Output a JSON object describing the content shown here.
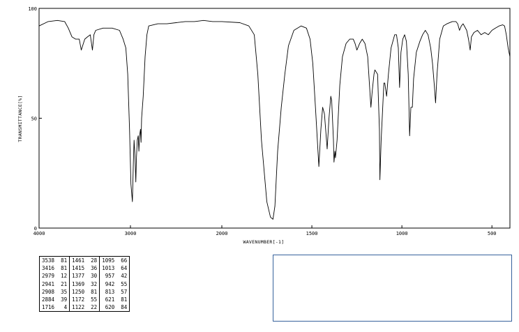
{
  "chart_data": {
    "type": "line",
    "title": "",
    "xlabel": "WAVENUMBER[-1]",
    "ylabel": "TRANSMITTANCE[%]",
    "xlim": [
      4000,
      400
    ],
    "ylim": [
      0,
      100
    ],
    "x_ticks": [
      "4000",
      "3000",
      "2000",
      "1500",
      "1000",
      "500"
    ],
    "y_ticks": [
      "100",
      "50",
      "0"
    ],
    "grid": false,
    "series": [
      {
        "points": [
          [
            4000,
            92
          ],
          [
            3900,
            94
          ],
          [
            3800,
            94.5
          ],
          [
            3720,
            94
          ],
          [
            3680,
            91
          ],
          [
            3640,
            87
          ],
          [
            3600,
            86
          ],
          [
            3560,
            86
          ],
          [
            3538,
            81
          ],
          [
            3500,
            86
          ],
          [
            3470,
            87
          ],
          [
            3440,
            88
          ],
          [
            3416,
            81
          ],
          [
            3400,
            88
          ],
          [
            3380,
            90
          ],
          [
            3300,
            91
          ],
          [
            3200,
            91
          ],
          [
            3120,
            90
          ],
          [
            3080,
            86
          ],
          [
            3050,
            82
          ],
          [
            3030,
            70
          ],
          [
            3010,
            45
          ],
          [
            2995,
            20
          ],
          [
            2979,
            12
          ],
          [
            2968,
            30
          ],
          [
            2960,
            40
          ],
          [
            2950,
            32
          ],
          [
            2941,
            21
          ],
          [
            2934,
            32
          ],
          [
            2925,
            40
          ],
          [
            2915,
            42
          ],
          [
            2908,
            35
          ],
          [
            2900,
            42
          ],
          [
            2890,
            45
          ],
          [
            2884,
            39
          ],
          [
            2878,
            50
          ],
          [
            2860,
            60
          ],
          [
            2840,
            78
          ],
          [
            2820,
            88
          ],
          [
            2800,
            92
          ],
          [
            2700,
            93
          ],
          [
            2600,
            93
          ],
          [
            2500,
            93.5
          ],
          [
            2400,
            94
          ],
          [
            2300,
            94
          ],
          [
            2200,
            94.5
          ],
          [
            2100,
            94
          ],
          [
            2000,
            94
          ],
          [
            1900,
            93.5
          ],
          [
            1850,
            92
          ],
          [
            1820,
            88
          ],
          [
            1800,
            70
          ],
          [
            1780,
            40
          ],
          [
            1750,
            12
          ],
          [
            1730,
            5
          ],
          [
            1716,
            4
          ],
          [
            1705,
            10
          ],
          [
            1690,
            35
          ],
          [
            1670,
            55
          ],
          [
            1650,
            70
          ],
          [
            1630,
            83
          ],
          [
            1600,
            90
          ],
          [
            1560,
            92
          ],
          [
            1530,
            91
          ],
          [
            1510,
            86
          ],
          [
            1495,
            75
          ],
          [
            1480,
            55
          ],
          [
            1461,
            28
          ],
          [
            1450,
            45
          ],
          [
            1440,
            55
          ],
          [
            1430,
            52
          ],
          [
            1415,
            36
          ],
          [
            1405,
            50
          ],
          [
            1395,
            60
          ],
          [
            1390,
            58
          ],
          [
            1380,
            40
          ],
          [
            1377,
            30
          ],
          [
            1372,
            35
          ],
          [
            1369,
            32
          ],
          [
            1360,
            40
          ],
          [
            1345,
            65
          ],
          [
            1330,
            78
          ],
          [
            1310,
            84
          ],
          [
            1290,
            86
          ],
          [
            1270,
            86
          ],
          [
            1260,
            84
          ],
          [
            1250,
            81
          ],
          [
            1235,
            84
          ],
          [
            1220,
            86
          ],
          [
            1205,
            84
          ],
          [
            1190,
            78
          ],
          [
            1180,
            65
          ],
          [
            1172,
            55
          ],
          [
            1165,
            62
          ],
          [
            1155,
            70
          ],
          [
            1150,
            72
          ],
          [
            1135,
            70
          ],
          [
            1125,
            45
          ],
          [
            1122,
            22
          ],
          [
            1115,
            40
          ],
          [
            1108,
            52
          ],
          [
            1100,
            66
          ],
          [
            1095,
            66
          ],
          [
            1085,
            60
          ],
          [
            1075,
            70
          ],
          [
            1060,
            82
          ],
          [
            1040,
            88
          ],
          [
            1030,
            88
          ],
          [
            1020,
            82
          ],
          [
            1013,
            64
          ],
          [
            1005,
            80
          ],
          [
            995,
            86
          ],
          [
            985,
            88
          ],
          [
            975,
            85
          ],
          [
            965,
            70
          ],
          [
            957,
            42
          ],
          [
            950,
            55
          ],
          [
            942,
            55
          ],
          [
            935,
            68
          ],
          [
            920,
            80
          ],
          [
            900,
            85
          ],
          [
            885,
            88
          ],
          [
            870,
            90
          ],
          [
            855,
            88
          ],
          [
            840,
            82
          ],
          [
            830,
            75
          ],
          [
            820,
            65
          ],
          [
            813,
            57
          ],
          [
            805,
            70
          ],
          [
            790,
            86
          ],
          [
            770,
            92
          ],
          [
            750,
            93
          ],
          [
            720,
            94
          ],
          [
            700,
            94
          ],
          [
            690,
            93
          ],
          [
            680,
            90
          ],
          [
            670,
            92
          ],
          [
            660,
            93
          ],
          [
            640,
            90
          ],
          [
            630,
            86
          ],
          [
            621,
            81
          ],
          [
            614,
            87
          ],
          [
            600,
            89
          ],
          [
            580,
            90
          ],
          [
            560,
            88
          ],
          [
            540,
            89
          ],
          [
            520,
            88
          ],
          [
            500,
            90
          ],
          [
            480,
            91
          ],
          [
            460,
            92
          ],
          [
            440,
            92.5
          ],
          [
            430,
            92
          ],
          [
            420,
            88
          ],
          [
            410,
            82
          ],
          [
            400,
            78
          ]
        ]
      }
    ],
    "peak_table": [
      [
        "3538",
        "81",
        "1461",
        "28",
        "1095",
        "66"
      ],
      [
        "3416",
        "81",
        "1415",
        "36",
        "1013",
        "64"
      ],
      [
        "2979",
        "12",
        "1377",
        "30",
        "957",
        "42"
      ],
      [
        "2941",
        "21",
        "1369",
        "32",
        "942",
        "55"
      ],
      [
        "2908",
        "35",
        "1250",
        "81",
        "813",
        "57"
      ],
      [
        "2884",
        "39",
        "1172",
        "55",
        "621",
        "81"
      ],
      [
        "1716",
        "4",
        "1122",
        "22",
        "620",
        "84"
      ]
    ]
  }
}
